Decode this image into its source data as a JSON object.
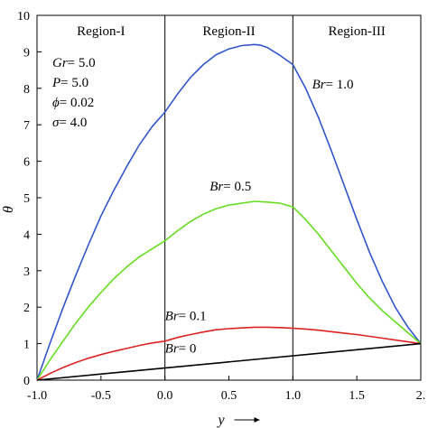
{
  "chart_data": {
    "type": "line",
    "xlabel": "y",
    "ylabel": "θ",
    "xlim": [
      -1.0,
      2.0
    ],
    "ylim": [
      0,
      10
    ],
    "x_ticks": [
      "-1.0",
      "-0.5",
      "0.0",
      "0.5",
      "1.0",
      "1.5",
      "2."
    ],
    "y_ticks": [
      "0",
      "1",
      "2",
      "3",
      "4",
      "5",
      "6",
      "7",
      "8",
      "9",
      "10"
    ],
    "region_boundaries": [
      0.0,
      1.0
    ],
    "regions": [
      "Region-I",
      "Region-II",
      "Region-III"
    ],
    "parameters": [
      {
        "symbol": "Gr",
        "value": "= 5.0"
      },
      {
        "symbol": "P",
        "value": "= 5.0"
      },
      {
        "symbol": "ϕ",
        "value": "= 0.02"
      },
      {
        "symbol": "σ",
        "value": "= 4.0"
      }
    ],
    "series": [
      {
        "name": "Br = 1.0",
        "symbol": "Br",
        "value": "= 1.0",
        "color": "#3355cc",
        "x": [
          -1.0,
          -0.9,
          -0.8,
          -0.7,
          -0.6,
          -0.5,
          -0.4,
          -0.3,
          -0.2,
          -0.1,
          0.0,
          0.1,
          0.2,
          0.3,
          0.4,
          0.5,
          0.6,
          0.7,
          0.75,
          0.8,
          0.9,
          1.0,
          1.1,
          1.2,
          1.3,
          1.4,
          1.5,
          1.6,
          1.7,
          1.8,
          1.9,
          2.0
        ],
        "y": [
          0,
          1.0,
          1.95,
          2.85,
          3.7,
          4.5,
          5.2,
          5.85,
          6.45,
          6.95,
          7.35,
          7.85,
          8.3,
          8.65,
          8.92,
          9.08,
          9.17,
          9.2,
          9.18,
          9.12,
          8.9,
          8.65,
          8.0,
          7.2,
          6.3,
          5.35,
          4.4,
          3.5,
          2.7,
          2.0,
          1.45,
          1.0
        ]
      },
      {
        "name": "Br = 0.5",
        "symbol": "Br",
        "value": "= 0.5",
        "color": "#66dd22",
        "x": [
          -1.0,
          -0.9,
          -0.8,
          -0.7,
          -0.6,
          -0.5,
          -0.4,
          -0.3,
          -0.2,
          -0.1,
          0.0,
          0.1,
          0.2,
          0.3,
          0.4,
          0.5,
          0.6,
          0.7,
          0.8,
          0.9,
          1.0,
          1.1,
          1.2,
          1.3,
          1.4,
          1.5,
          1.6,
          1.7,
          1.8,
          1.9,
          2.0
        ],
        "y": [
          0,
          0.55,
          1.05,
          1.55,
          2.0,
          2.4,
          2.78,
          3.1,
          3.38,
          3.6,
          3.82,
          4.1,
          4.35,
          4.55,
          4.7,
          4.8,
          4.85,
          4.9,
          4.88,
          4.85,
          4.75,
          4.4,
          4.0,
          3.55,
          3.1,
          2.65,
          2.25,
          1.9,
          1.6,
          1.3,
          1.0
        ]
      },
      {
        "name": "Br = 0.1",
        "symbol": "Br",
        "value": "= 0.1",
        "color": "#dd2222",
        "x": [
          -1.0,
          -0.9,
          -0.8,
          -0.7,
          -0.6,
          -0.5,
          -0.4,
          -0.3,
          -0.2,
          -0.1,
          0.0,
          0.1,
          0.2,
          0.3,
          0.4,
          0.5,
          0.6,
          0.7,
          0.8,
          0.9,
          1.0,
          1.1,
          1.2,
          1.3,
          1.4,
          1.5,
          1.6,
          1.7,
          1.8,
          1.9,
          2.0
        ],
        "y": [
          0,
          0.18,
          0.34,
          0.48,
          0.6,
          0.7,
          0.79,
          0.87,
          0.95,
          1.02,
          1.07,
          1.17,
          1.25,
          1.32,
          1.38,
          1.41,
          1.43,
          1.45,
          1.45,
          1.44,
          1.42,
          1.4,
          1.37,
          1.33,
          1.29,
          1.25,
          1.2,
          1.15,
          1.1,
          1.05,
          1.0
        ]
      },
      {
        "name": "Br = 0",
        "symbol": "Br",
        "value": "= 0",
        "color": "#000000",
        "x": [
          -1.0,
          2.0
        ],
        "y": [
          0,
          1.0
        ]
      }
    ]
  }
}
